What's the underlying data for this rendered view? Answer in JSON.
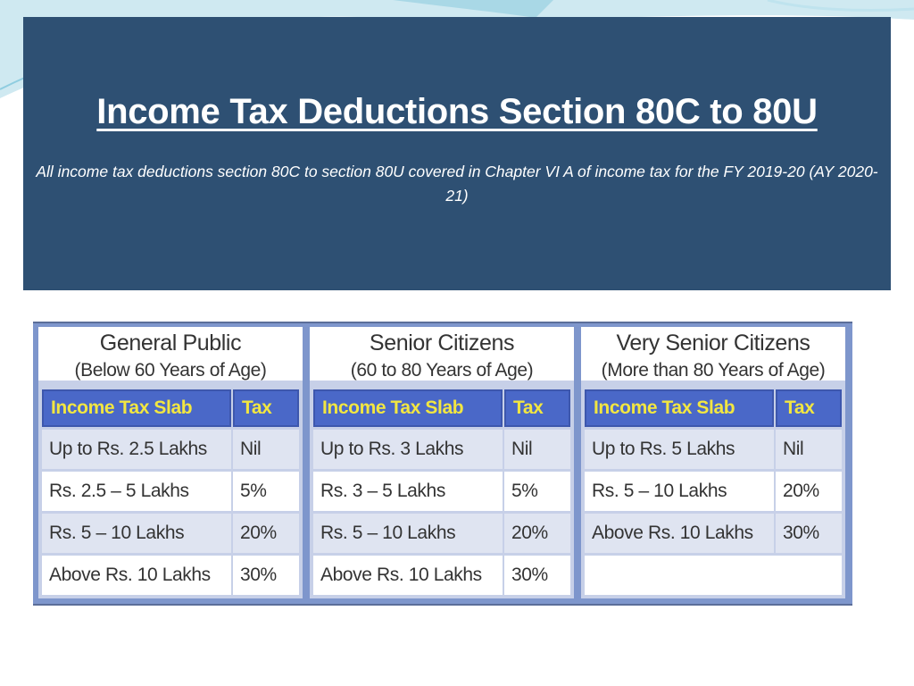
{
  "slide": {
    "title": "Income Tax Deductions Section 80C to 80U",
    "subtitle": "All income tax deductions section 80C to section 80U covered in Chapter VI A of income tax for the FY 2019-20 (AY 2020-21)"
  },
  "tax_tables": [
    {
      "group": "General Public",
      "age": "(Below 60 Years of Age)",
      "header_slab": "Income Tax Slab",
      "header_tax": "Tax",
      "rows": [
        {
          "slab": "Up to Rs. 2.5 Lakhs",
          "tax": "Nil"
        },
        {
          "slab": "Rs. 2.5 – 5 Lakhs",
          "tax": "5%"
        },
        {
          "slab": "Rs. 5 – 10 Lakhs",
          "tax": "20%"
        },
        {
          "slab": "Above Rs. 10 Lakhs",
          "tax": "30%"
        }
      ]
    },
    {
      "group": "Senior Citizens",
      "age": "(60 to 80 Years of Age)",
      "header_slab": "Income Tax Slab",
      "header_tax": "Tax",
      "rows": [
        {
          "slab": "Up to Rs. 3 Lakhs",
          "tax": "Nil"
        },
        {
          "slab": "Rs. 3 – 5 Lakhs",
          "tax": "5%"
        },
        {
          "slab": "Rs. 5 – 10 Lakhs",
          "tax": "20%"
        },
        {
          "slab": "Above Rs. 10 Lakhs",
          "tax": "30%"
        }
      ]
    },
    {
      "group": "Very Senior Citizens",
      "age": "(More than 80 Years of Age)",
      "header_slab": "Income Tax Slab",
      "header_tax": "Tax",
      "rows": [
        {
          "slab": "Up to Rs. 5 Lakhs",
          "tax": "Nil"
        },
        {
          "slab": "Rs. 5 – 10 Lakhs",
          "tax": "20%"
        },
        {
          "slab": "Above Rs. 10 Lakhs",
          "tax": "30%"
        }
      ]
    }
  ],
  "colors": {
    "title_bg": "#2e5073",
    "header_bg": "#4a68c8",
    "header_text": "#f2e641",
    "table_frame": "#7e96cc"
  }
}
